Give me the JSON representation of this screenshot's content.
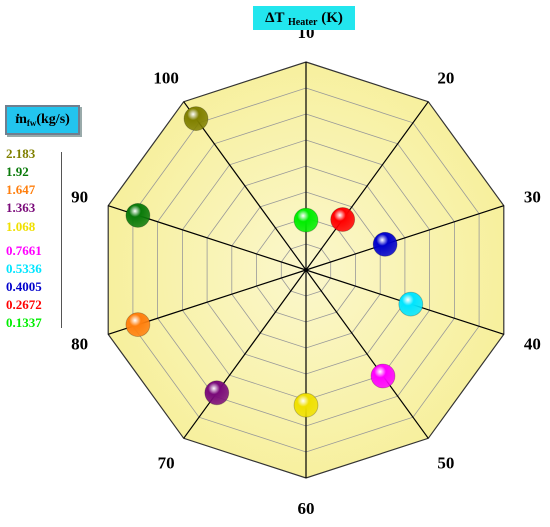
{
  "header": {
    "title_main": "ΔT",
    "title_sub": "Heater",
    "title_unit": "(K)"
  },
  "legend": {
    "title_main": "m",
    "title_sub": "fw",
    "title_unit": "(kg/s)",
    "items": [
      {
        "label": "2.183",
        "color": "#808000"
      },
      {
        "label": "1.92",
        "color": "#0a7a0a"
      },
      {
        "label": "1.647",
        "color": "#ff7f0e"
      },
      {
        "label": "1.363",
        "color": "#7a0a7a"
      },
      {
        "label": "1.068",
        "color": "#f0e000"
      },
      {
        "label": "0.7661",
        "color": "#ff00ff"
      },
      {
        "label": "0.5336",
        "color": "#00e5ff"
      },
      {
        "label": "0.4005",
        "color": "#0000cc"
      },
      {
        "label": "0.2672",
        "color": "#ff0000"
      },
      {
        "label": "0.1337",
        "color": "#00ee00"
      }
    ]
  },
  "chart_data": {
    "type": "scatter",
    "subtype": "polar",
    "title": "ΔT Heater (K)",
    "angular_labels": [
      "10",
      "20",
      "30",
      "40",
      "50",
      "60",
      "70",
      "80",
      "90",
      "100"
    ],
    "radial_range": [
      0,
      1
    ],
    "grid": true,
    "points": [
      {
        "angle_label": "10",
        "r": 0.24,
        "series": "0.1337",
        "color": "#00ee00"
      },
      {
        "angle_label": "20",
        "r": 0.3,
        "series": "0.2672",
        "color": "#ff0000"
      },
      {
        "angle_label": "30",
        "r": 0.4,
        "series": "0.4005",
        "color": "#0000cc"
      },
      {
        "angle_label": "40",
        "r": 0.53,
        "series": "0.5336",
        "color": "#00e5ff"
      },
      {
        "angle_label": "50",
        "r": 0.63,
        "series": "0.7661",
        "color": "#ff00ff"
      },
      {
        "angle_label": "60",
        "r": 0.65,
        "series": "1.068",
        "color": "#f0e000"
      },
      {
        "angle_label": "70",
        "r": 0.73,
        "series": "1.363",
        "color": "#7a0a7a"
      },
      {
        "angle_label": "80",
        "r": 0.85,
        "series": "1.647",
        "color": "#ff7f0e"
      },
      {
        "angle_label": "90",
        "r": 0.85,
        "series": "1.92",
        "color": "#0a7a0a"
      },
      {
        "angle_label": "100",
        "r": 0.9,
        "series": "2.183",
        "color": "#808000"
      }
    ],
    "colors": {
      "fill": "#f7f09e",
      "fill_inner": "#fbf7cc",
      "grid": "#999999",
      "spoke": "#000000"
    }
  }
}
